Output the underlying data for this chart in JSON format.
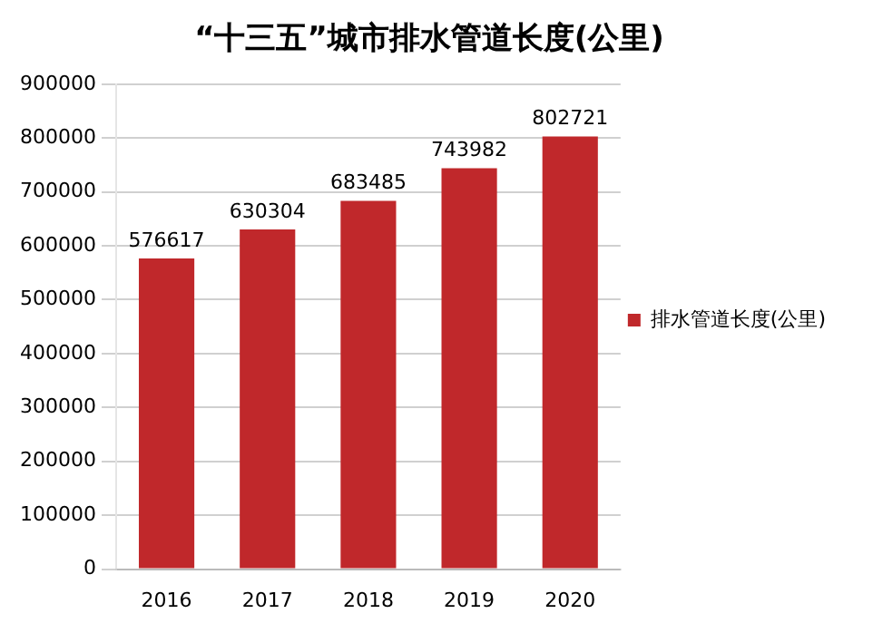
{
  "chart_data": {
    "type": "bar",
    "title": "“十三五”城市排水管道长度(公里)",
    "categories": [
      "2016",
      "2017",
      "2018",
      "2019",
      "2020"
    ],
    "series": [
      {
        "name": "排水管道长度(公里)",
        "color": "#c0282b",
        "values": [
          576617,
          630304,
          683485,
          743982,
          802721
        ]
      }
    ],
    "ylim": [
      0,
      900000
    ],
    "yticks": [
      0,
      100000,
      200000,
      300000,
      400000,
      500000,
      600000,
      700000,
      800000,
      900000
    ],
    "grid": "y",
    "legend": "right",
    "data_labels": true
  }
}
